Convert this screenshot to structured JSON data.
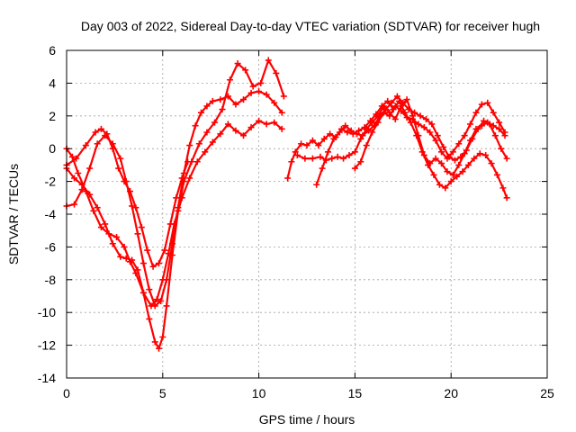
{
  "chart_data": {
    "type": "line",
    "title": "Day 003 of 2022, Sidereal Day-to-day VTEC variation (SDTVAR) for receiver hugh",
    "xlabel": "GPS time / hours",
    "ylabel": "SDTVAR / TECUs",
    "xlim": [
      0,
      25
    ],
    "ylim": [
      -14,
      6
    ],
    "xticks": [
      0,
      5,
      10,
      15,
      20,
      25
    ],
    "yticks": [
      -14,
      -12,
      -10,
      -8,
      -6,
      -4,
      -2,
      0,
      2,
      4,
      6
    ],
    "grid": true,
    "marker": "+",
    "color": "#ff0000",
    "series": [
      {
        "x": [
          0.0,
          0.4,
          0.8,
          1.2,
          1.6,
          2.0,
          2.4,
          2.8,
          3.1,
          3.4,
          3.7,
          4.0,
          4.3,
          4.6,
          4.9,
          5.2,
          5.5,
          5.8,
          6.1,
          6.4,
          6.7,
          7.0,
          7.3,
          7.6,
          8.0,
          8.4,
          8.8,
          9.2,
          9.6,
          10.0,
          10.4,
          10.8,
          11.2
        ],
        "y": [
          -3.5,
          -3.4,
          -2.5,
          -1.2,
          0.3,
          0.8,
          0.3,
          -0.6,
          -2.0,
          -3.5,
          -5.2,
          -7.0,
          -8.6,
          -9.6,
          -9.3,
          -8.0,
          -5.8,
          -3.6,
          -1.5,
          0.2,
          1.4,
          2.2,
          2.6,
          2.9,
          3.0,
          3.2,
          2.7,
          3.0,
          3.4,
          3.5,
          3.3,
          2.8,
          2.2
        ]
      },
      {
        "x": [
          0.0,
          0.4,
          0.8,
          1.2,
          1.6,
          2.0,
          2.4,
          2.8,
          3.1,
          3.4,
          3.7,
          4.0,
          4.3,
          4.6,
          4.8,
          5.0,
          5.2,
          5.5,
          5.8,
          6.1,
          6.5,
          6.9,
          7.3,
          7.7,
          8.1,
          8.5,
          8.9,
          9.3,
          9.7,
          10.1,
          10.5,
          10.9,
          11.3
        ],
        "y": [
          -1.2,
          -1.8,
          -2.2,
          -2.8,
          -3.6,
          -4.6,
          -5.8,
          -6.6,
          -6.7,
          -6.8,
          -7.4,
          -8.8,
          -10.4,
          -11.8,
          -12.2,
          -11.5,
          -9.6,
          -6.5,
          -3.8,
          -2.0,
          -0.8,
          0.3,
          1.0,
          1.6,
          2.4,
          4.2,
          5.2,
          4.8,
          3.8,
          4.0,
          5.4,
          4.6,
          3.2
        ]
      },
      {
        "x": [
          0.0,
          0.3,
          0.6,
          1.0,
          1.4,
          1.8,
          2.2,
          2.6,
          3.0,
          3.3,
          3.6,
          4.0,
          4.4,
          4.7,
          5.0,
          5.3,
          5.6,
          6.0,
          6.4,
          6.8,
          7.2,
          7.6,
          8.0,
          8.4,
          8.8,
          9.2,
          9.6,
          10.0,
          10.4,
          10.8,
          11.2
        ],
        "y": [
          0.0,
          -0.5,
          -1.5,
          -2.6,
          -3.8,
          -4.8,
          -5.2,
          -5.4,
          -6.0,
          -6.9,
          -7.6,
          -8.8,
          -9.6,
          -9.2,
          -8.0,
          -6.4,
          -4.6,
          -3.0,
          -1.8,
          -0.8,
          -0.2,
          0.4,
          0.9,
          1.5,
          1.1,
          0.8,
          1.3,
          1.7,
          1.5,
          1.6,
          1.2
        ]
      },
      {
        "x": [
          0.0,
          0.5,
          1.0,
          1.5,
          1.8,
          2.1,
          2.4,
          2.7,
          3.0,
          3.3,
          3.6,
          3.9,
          4.2,
          4.5,
          4.8,
          5.1,
          5.4,
          5.7,
          6.0,
          6.3
        ],
        "y": [
          -1.0,
          -0.6,
          0.2,
          1.0,
          1.2,
          0.9,
          0.0,
          -1.2,
          -2.0,
          -2.6,
          -3.6,
          -4.8,
          -6.2,
          -7.2,
          -7.0,
          -6.2,
          -4.6,
          -3.0,
          -1.8,
          -0.8
        ]
      },
      {
        "x": [
          11.5,
          11.7,
          11.9,
          12.2,
          12.5,
          12.8,
          13.1,
          13.4,
          13.7,
          14.0,
          14.3,
          14.6,
          14.9,
          15.2,
          15.5,
          15.8,
          16.1,
          16.4,
          16.7,
          17.0,
          17.3,
          17.6,
          17.9,
          18.2,
          18.5,
          18.8,
          19.1,
          19.4,
          19.7,
          20.0,
          20.3,
          20.6,
          20.9,
          21.2,
          21.5,
          21.8,
          22.1,
          22.4,
          22.7,
          22.9
        ],
        "y": [
          -1.8,
          -0.8,
          -0.2,
          0.3,
          0.2,
          0.5,
          0.2,
          0.6,
          0.9,
          0.7,
          1.2,
          1.0,
          0.9,
          1.1,
          1.3,
          1.7,
          2.1,
          2.6,
          2.9,
          2.4,
          2.9,
          2.2,
          1.6,
          0.8,
          -0.2,
          -1.0,
          -1.6,
          -2.2,
          -2.4,
          -2.0,
          -1.7,
          -1.4,
          -1.0,
          -0.6,
          -0.3,
          -0.4,
          -0.9,
          -1.6,
          -2.4,
          -3.0
        ]
      },
      {
        "x": [
          12.0,
          12.4,
          12.8,
          13.2,
          13.5,
          13.8,
          14.1,
          14.4,
          14.7,
          15.0,
          15.3,
          15.6,
          15.9,
          16.2,
          16.5,
          16.8,
          17.1,
          17.4,
          17.7,
          18.0,
          18.3,
          18.6,
          18.9,
          19.2,
          19.5,
          19.8,
          20.1,
          20.4,
          20.7,
          21.0,
          21.3,
          21.6,
          21.9,
          22.2,
          22.5,
          22.8
        ],
        "y": [
          -0.4,
          -0.6,
          -0.6,
          -0.5,
          -0.7,
          -0.6,
          -0.5,
          -0.6,
          -0.4,
          -0.2,
          0.6,
          1.2,
          1.6,
          2.0,
          2.6,
          2.2,
          1.8,
          2.6,
          3.0,
          2.0,
          0.8,
          -0.4,
          -0.9,
          -0.6,
          -0.9,
          -1.4,
          -1.6,
          -1.0,
          -0.3,
          0.5,
          1.2,
          1.4,
          1.6,
          1.4,
          1.2,
          0.8
        ]
      },
      {
        "x": [
          13.0,
          13.3,
          13.6,
          13.9,
          14.2,
          14.5,
          14.8,
          15.1,
          15.4,
          15.7,
          16.0,
          16.3,
          16.6,
          16.9,
          17.2,
          17.5,
          17.8,
          18.1,
          18.4,
          18.7,
          19.0,
          19.3,
          19.6,
          19.9,
          20.2,
          20.5,
          20.8,
          21.1,
          21.4,
          21.7,
          22.0,
          22.3,
          22.6,
          22.9
        ],
        "y": [
          -2.2,
          -1.2,
          -0.2,
          0.6,
          1.0,
          1.4,
          1.1,
          0.9,
          0.8,
          1.1,
          1.4,
          2.0,
          2.4,
          2.8,
          3.2,
          2.8,
          2.4,
          2.2,
          2.0,
          1.8,
          1.5,
          0.8,
          0.1,
          -0.5,
          -0.7,
          -0.5,
          -0.1,
          0.6,
          1.2,
          1.7,
          1.5,
          0.8,
          0.0,
          -0.6
        ]
      },
      {
        "x": [
          15.0,
          15.3,
          15.6,
          15.9,
          16.2,
          16.5,
          16.8,
          17.1,
          17.4,
          17.7,
          18.0,
          18.3,
          18.6,
          18.9,
          19.2,
          19.5,
          19.8,
          20.1,
          20.4,
          20.7,
          21.0,
          21.3,
          21.6,
          21.9,
          22.2,
          22.5,
          22.8
        ],
        "y": [
          -1.2,
          -0.8,
          0.2,
          1.0,
          1.6,
          2.2,
          2.0,
          2.6,
          2.3,
          1.9,
          1.8,
          1.5,
          1.3,
          1.0,
          0.5,
          -0.2,
          -0.6,
          -0.2,
          0.3,
          0.8,
          1.5,
          2.2,
          2.7,
          2.8,
          2.2,
          1.6,
          1.0
        ]
      }
    ]
  }
}
